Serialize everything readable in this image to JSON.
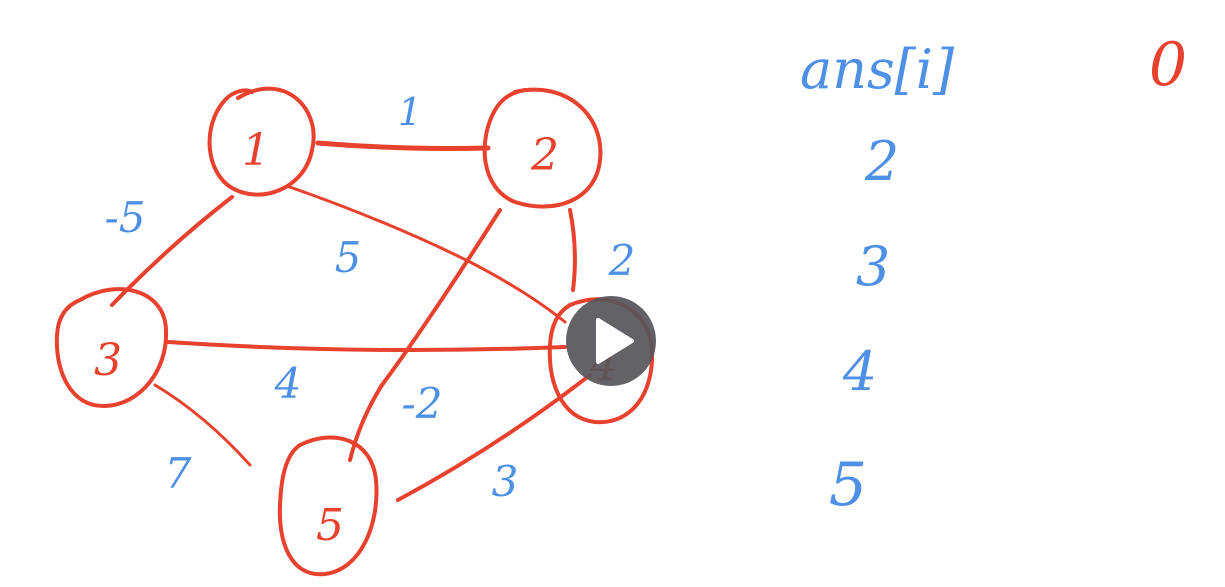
{
  "colors": {
    "edge_node": "#e8412e",
    "label": "#4d90e6",
    "play_bg": "#55555a",
    "play_icon": "#ffffff"
  },
  "nodes": [
    {
      "id": "1",
      "label": "1"
    },
    {
      "id": "2",
      "label": "2"
    },
    {
      "id": "3",
      "label": "3"
    },
    {
      "id": "4",
      "label": "4"
    },
    {
      "id": "5",
      "label": "5"
    }
  ],
  "edges": [
    {
      "from": "1",
      "to": "2",
      "weight": "1"
    },
    {
      "from": "1",
      "to": "3",
      "weight": "-5"
    },
    {
      "from": "1",
      "to": "4",
      "weight": "5"
    },
    {
      "from": "2",
      "to": "4",
      "weight": "2"
    },
    {
      "from": "2",
      "to": "5",
      "weight": "-2"
    },
    {
      "from": "3",
      "to": "4",
      "weight": "4"
    },
    {
      "from": "3",
      "to": "5",
      "weight": "7"
    },
    {
      "from": "5",
      "to": "4",
      "weight": "3"
    }
  ],
  "ans_list": {
    "header": "ans[i]",
    "first_value": "0",
    "rows": [
      "2",
      "3",
      "4",
      "5"
    ]
  },
  "video": {
    "play_icon": "play-icon"
  }
}
